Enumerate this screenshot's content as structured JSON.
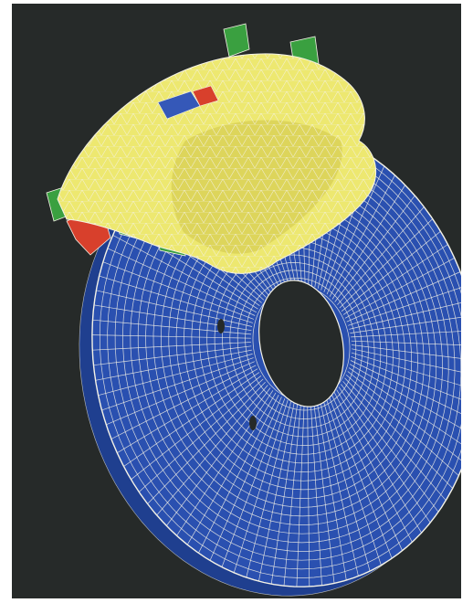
{
  "image": {
    "subject": "fea-mesh-brake-disc-and-caliper",
    "colors": {
      "background": "#262a29",
      "frame": "#ffffff",
      "disc": "#2a50b0",
      "disc_shadow": "#1f3f8f",
      "caliper": "#ede870",
      "caliper_shade": "#cfc54a",
      "mounts": "#3aa040",
      "pad_red": "#d8402c",
      "pad_blue": "#3558b8",
      "mesh": "#f4f2e6"
    }
  }
}
